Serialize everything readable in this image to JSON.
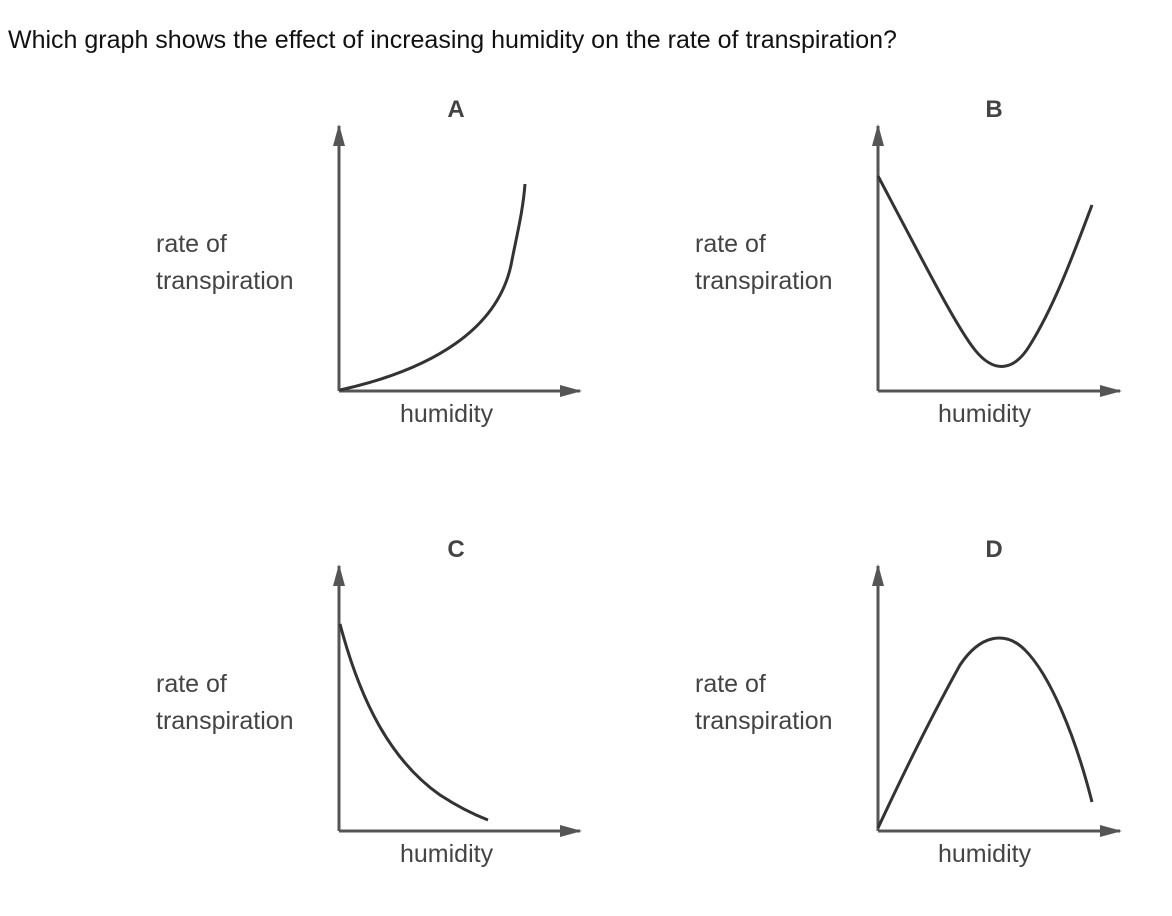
{
  "question": "Which graph shows the effect of increasing humidity on the rate of transpiration?",
  "panels": [
    {
      "letter": "A",
      "ylabel_line1": "rate of",
      "ylabel_line2": "transpiration",
      "xlabel": "humidity",
      "trend": "increasing (exponential)"
    },
    {
      "letter": "B",
      "ylabel_line1": "rate of",
      "ylabel_line2": "transpiration",
      "xlabel": "humidity",
      "trend": "decrease then increase (U-shape)"
    },
    {
      "letter": "C",
      "ylabel_line1": "rate of",
      "ylabel_line2": "transpiration",
      "xlabel": "humidity",
      "trend": "decreasing"
    },
    {
      "letter": "D",
      "ylabel_line1": "rate of",
      "ylabel_line2": "transpiration",
      "xlabel": "humidity",
      "trend": "increase then decrease (inverted U)"
    }
  ],
  "colors": {
    "axis": "#555555",
    "curve": "#333333",
    "text": "#444444"
  }
}
